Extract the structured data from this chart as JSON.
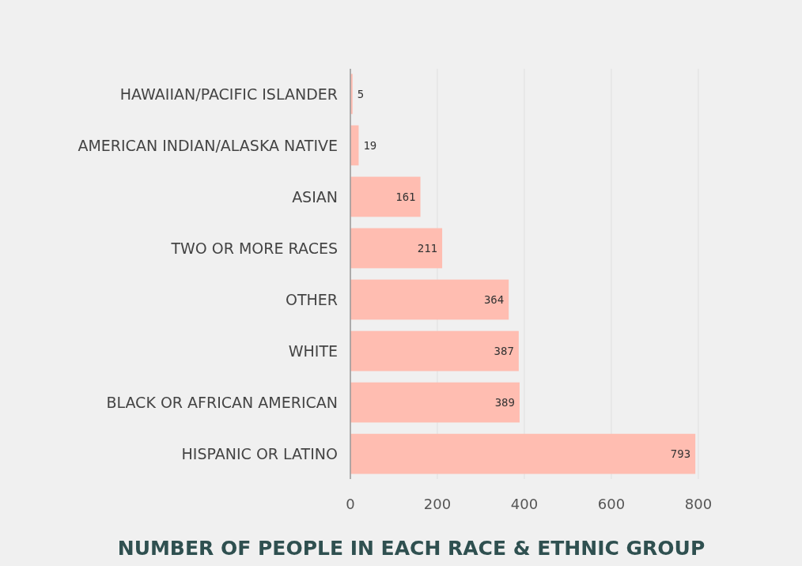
{
  "chart_data": {
    "type": "bar",
    "orientation": "horizontal",
    "title": "NUMBER OF PEOPLE IN EACH RACE & ETHNIC GROUP",
    "categories": [
      "HAWAIIAN/PACIFIC ISLANDER",
      "AMERICAN INDIAN/ALASKA NATIVE",
      "ASIAN",
      "TWO OR MORE RACES",
      "OTHER",
      "WHITE",
      "BLACK OR AFRICAN AMERICAN",
      "HISPANIC OR LATINO"
    ],
    "values": [
      5,
      19,
      161,
      211,
      364,
      387,
      389,
      793
    ],
    "color": "#ffbdb1",
    "xlim": [
      0,
      800
    ],
    "xticks": [
      0,
      200,
      400,
      600,
      800
    ],
    "grid": "x",
    "data_labels": true
  }
}
